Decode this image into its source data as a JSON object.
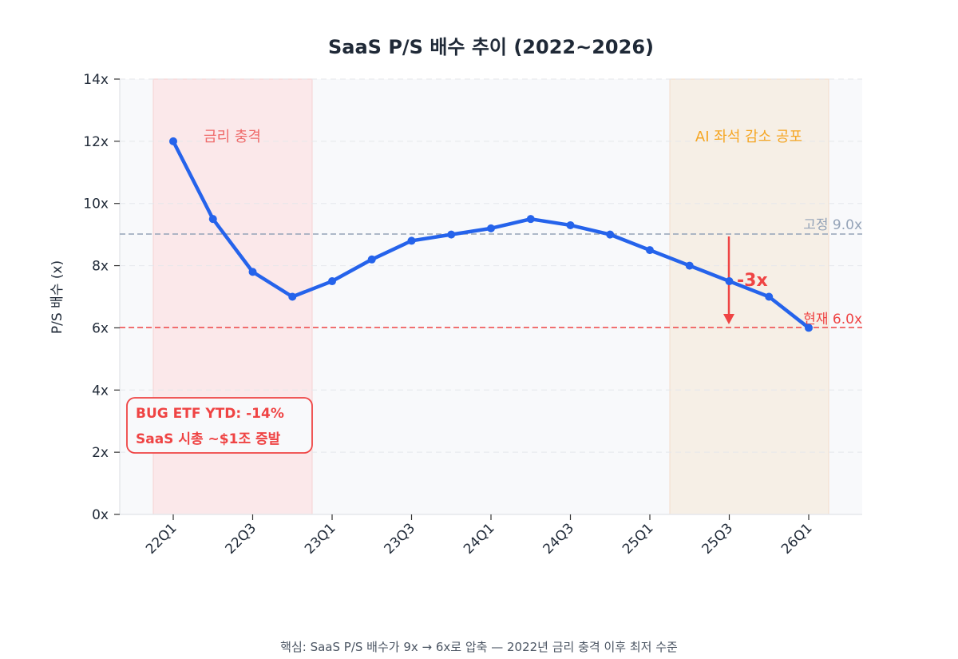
{
  "chart_data": {
    "type": "line",
    "title": "SaaS P/S 배수 추이 (2022~2026)",
    "xlabel": "",
    "ylabel": "P/S 배수 (x)",
    "ylim": [
      0,
      14
    ],
    "yticks": [
      "0x",
      "2x",
      "4x",
      "6x",
      "8x",
      "10x",
      "12x",
      "14x"
    ],
    "x": [
      "22Q1",
      "22Q2",
      "22Q3",
      "22Q4",
      "23Q1",
      "23Q2",
      "23Q3",
      "23Q4",
      "24Q1",
      "24Q2",
      "24Q3",
      "24Q4",
      "25Q1",
      "25Q2",
      "25Q3",
      "25Q4",
      "26Q1"
    ],
    "xtick_labels": [
      "22Q1",
      "22Q3",
      "23Q1",
      "23Q3",
      "24Q1",
      "24Q3",
      "25Q1",
      "25Q3",
      "26Q1"
    ],
    "series": [
      {
        "name": "SaaS P/S",
        "color": "#2563eb",
        "values": [
          12.0,
          9.5,
          7.8,
          7.0,
          7.5,
          8.2,
          8.8,
          9.0,
          9.2,
          9.5,
          9.3,
          9.0,
          8.5,
          8.0,
          7.5,
          7.0,
          6.0
        ]
      }
    ],
    "grid": true,
    "reference_lines": [
      {
        "label": "고정 9.0x",
        "value": 9.0,
        "color": "#94a3b8",
        "style": "dashed"
      },
      {
        "label": "현재 6.0x",
        "value": 6.0,
        "color": "#ef4444",
        "style": "dashed"
      }
    ],
    "shaded_regions": [
      {
        "label": "금리 충격",
        "from": "21Q4.5",
        "to": "22Q4.5",
        "color": "#fca5a5",
        "text_color": "#ef6b6b"
      },
      {
        "label": "AI 좌석 감소 공포",
        "from": "25Q1.5",
        "to": "26Q1.5",
        "color": "#fde2b8",
        "text_color": "#f5a623"
      }
    ],
    "annotations": [
      {
        "text": "-3x",
        "x": "25Q3",
        "from": 9.0,
        "to": 6.0,
        "color": "#ef4444"
      },
      {
        "text": "BUG ETF YTD: -14%\nSaaS 시총 ~$1조 증발",
        "color": "#ef4444"
      }
    ]
  },
  "labels": {
    "title": "SaaS P/S 배수 추이 (2022~2026)",
    "ylabel": "P/S 배수 (x)",
    "region1": "금리 충격",
    "region2": "AI 좌석 감소 공포",
    "ref_fixed": "고정 9.0x",
    "ref_current": "현재 6.0x",
    "delta": "-3x",
    "box_line1": "BUG ETF YTD: -14%",
    "box_line2": "SaaS 시총 ~$1조 증발",
    "footer": "핵심: SaaS P/S 배수가 9x → 6x로 압축 — 2022년 금리 충격 이후 최저 수준"
  },
  "colors": {
    "line": "#2563eb",
    "alert": "#ef4444",
    "ref": "#94a3b8",
    "plot_bg": "#f8f9fb"
  }
}
